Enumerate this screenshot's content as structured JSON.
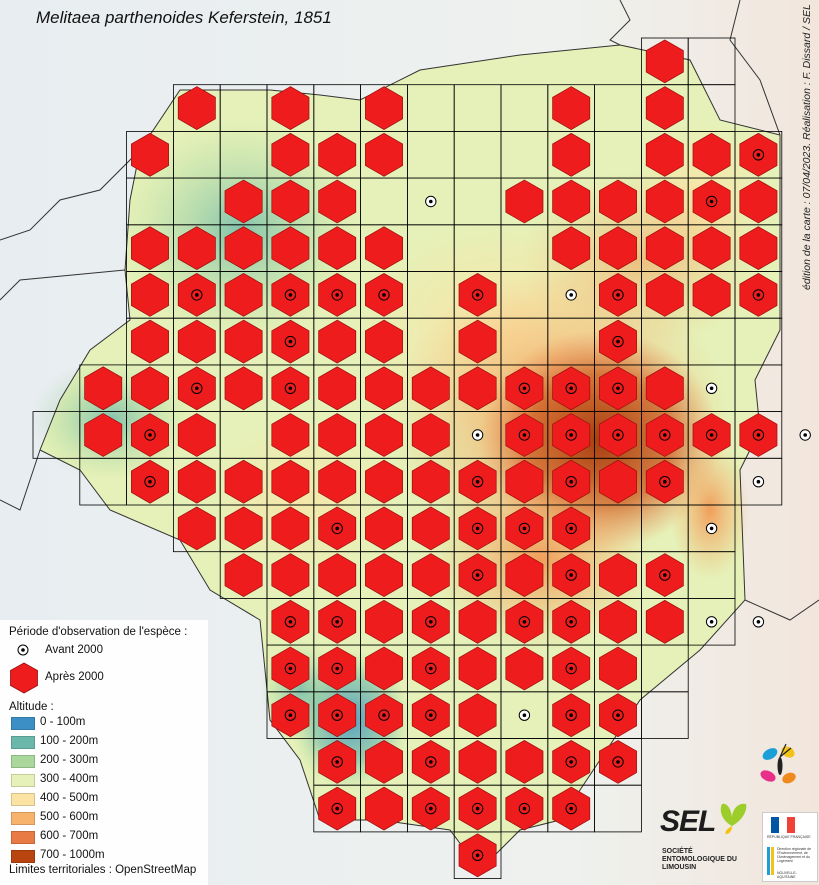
{
  "title": "Melitaea parthenoides Keferstein, 1851",
  "credit": "édition de la carte : 07/04/2023. Réalisation : F. Dissard / SEL",
  "legend": {
    "period_title": "Période d'observation de l'espèce :",
    "before_label": "Avant 2000",
    "after_label": "Après 2000",
    "altitude_title": "Altitude :",
    "altitude_classes": [
      {
        "label": "0 - 100m",
        "color": "#3b8fc4"
      },
      {
        "label": "100 - 200m",
        "color": "#6bb8aa"
      },
      {
        "label": "200 - 300m",
        "color": "#a9d79c"
      },
      {
        "label": "300 - 400m",
        "color": "#e5f1b8"
      },
      {
        "label": "400 - 500m",
        "color": "#fbe3a4"
      },
      {
        "label": "500 - 600m",
        "color": "#f7b26c"
      },
      {
        "label": "600 - 700m",
        "color": "#e87a45"
      },
      {
        "label": "700 - 1000m",
        "color": "#b8450f"
      }
    ],
    "limits_label": "Limites territoriales : OpenStreetMap"
  },
  "colors": {
    "hexagon_fill": "#ee1c1c",
    "hexagon_stroke": "#9a0e0e",
    "grid_line": "#000000"
  },
  "logos": {
    "sel_text": "SEL",
    "sel_subtitle": "SOCIÉTÉ ENTOMOLOGIQUE DU LIMOUSIN",
    "gov_line1": "RÉPUBLIQUE FRANÇAISE",
    "gov_line2": "Direction régionale de l'Environnement, de l'Aménagement et du Logement",
    "gov_line3": "NOUVELLE-AQUITAINE"
  }
}
